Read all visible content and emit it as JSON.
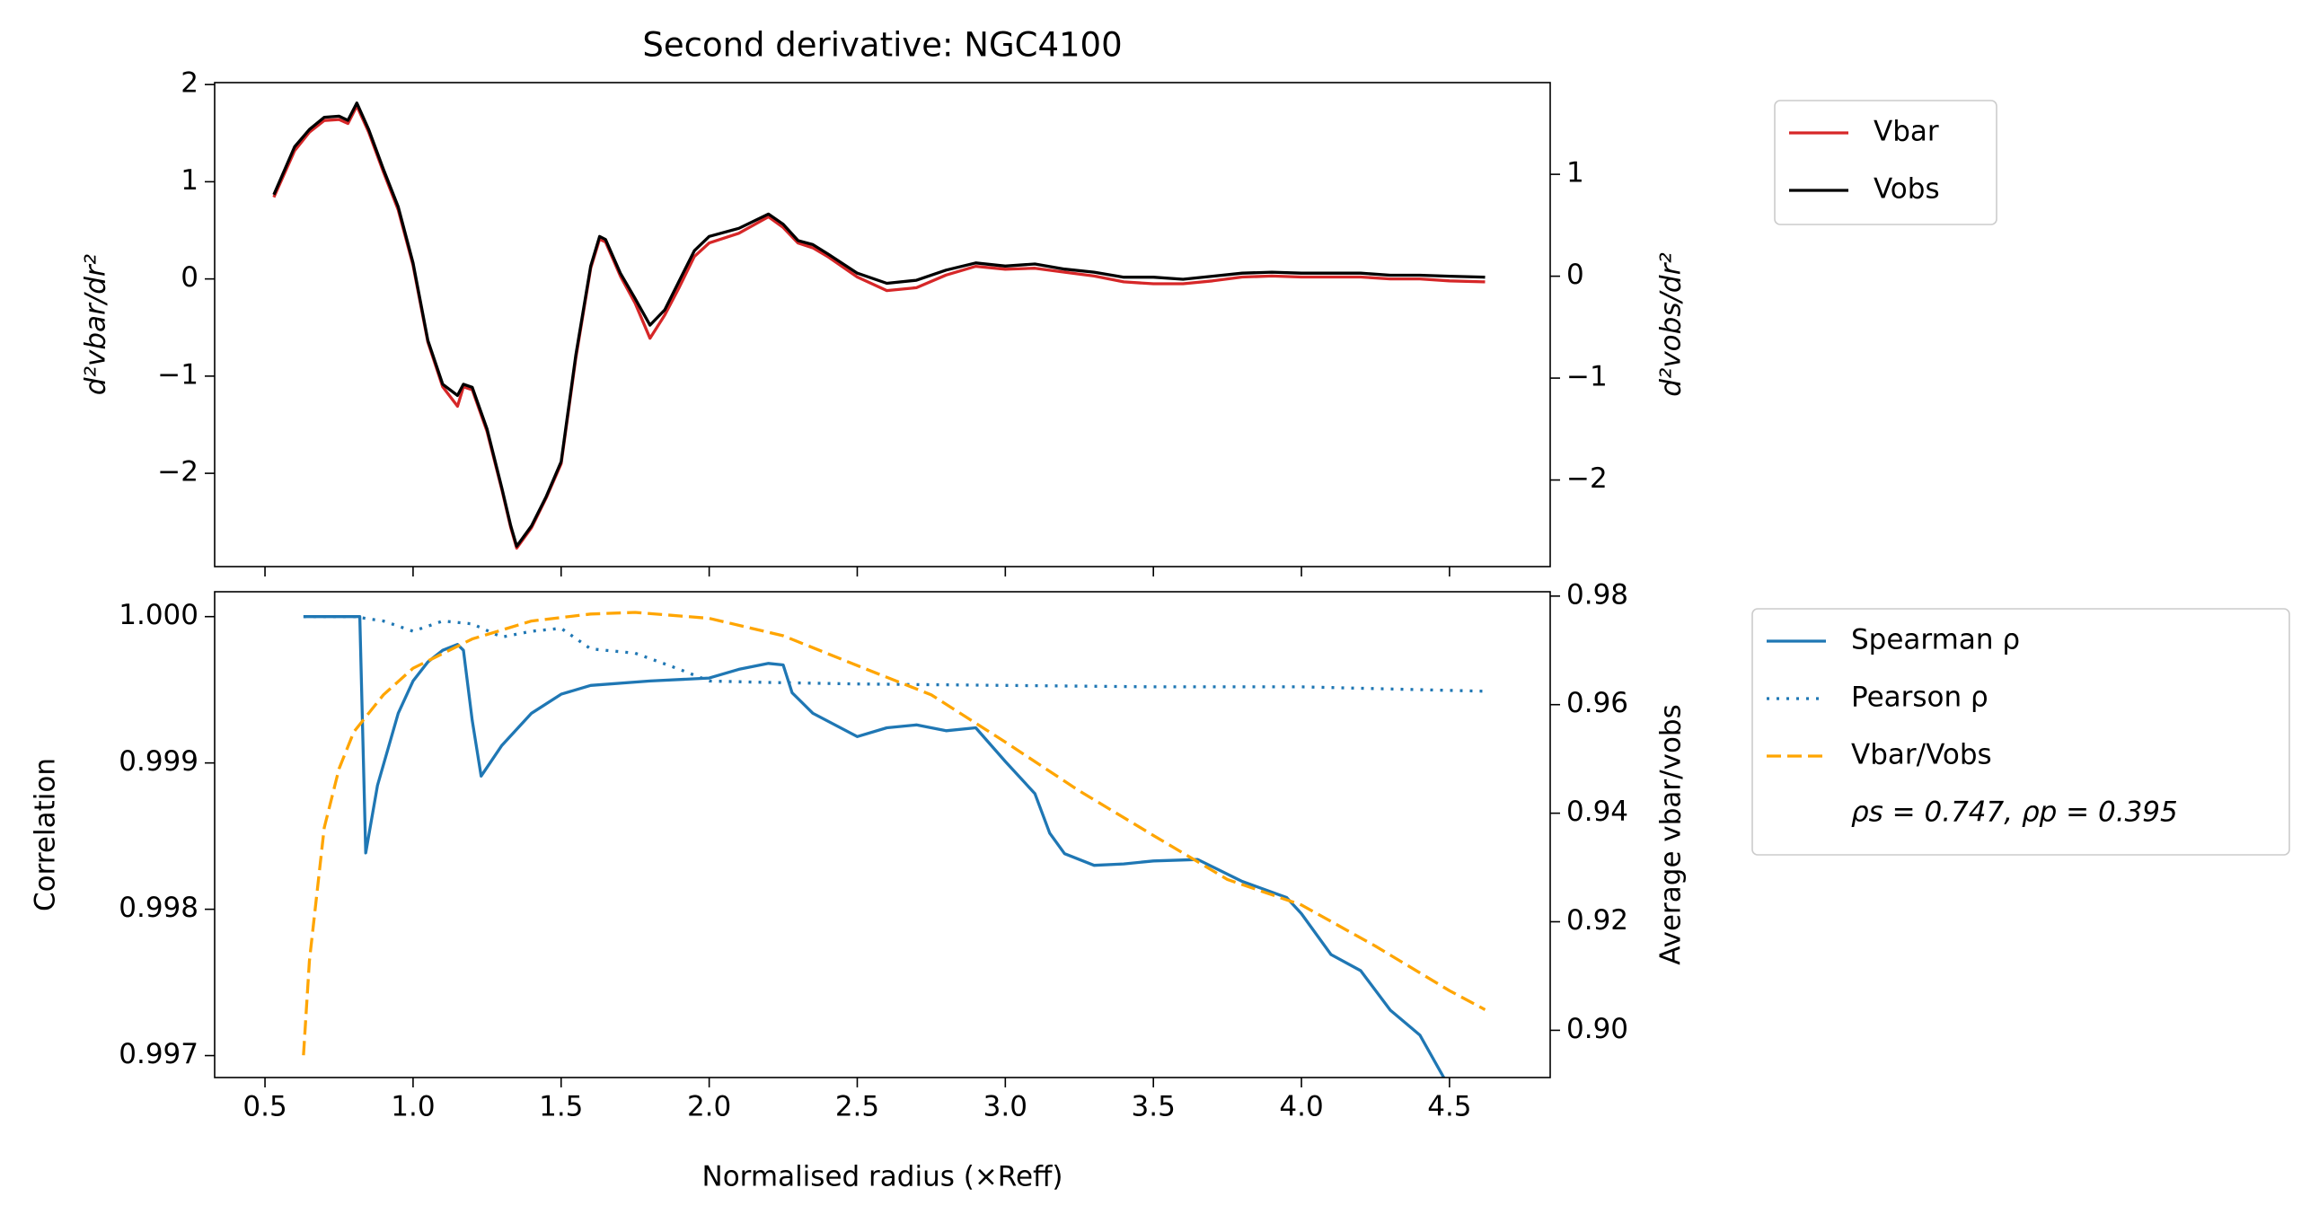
{
  "chart_data": [
    {
      "type": "line",
      "title": "Second derivative: NGC4100",
      "ylabel": "d²vbar/dr²",
      "y2label": "d²vobs/dr²",
      "ylabel_color": "#d62728",
      "y2label_color": "#000000",
      "xlim": [
        0.33,
        4.84
      ],
      "ylim": [
        -2.96,
        2.02
      ],
      "y2lim": [
        -2.85,
        1.9
      ],
      "yticks": [
        {
          "value": -2,
          "label": "−2"
        },
        {
          "value": -1,
          "label": "−1"
        },
        0,
        1,
        2
      ],
      "y2ticks": [
        {
          "value": -2,
          "label": "−2"
        },
        {
          "value": -1,
          "label": "−1"
        },
        0,
        1
      ],
      "legend": "outside upper right",
      "series": [
        {
          "name": "Vbar",
          "color": "#d62728",
          "linestyle": "solid",
          "x": [
            0.53,
            0.6,
            0.65,
            0.7,
            0.75,
            0.78,
            0.81,
            0.85,
            0.9,
            0.95,
            1.0,
            1.05,
            1.1,
            1.15,
            1.17,
            1.2,
            1.25,
            1.3,
            1.33,
            1.35,
            1.4,
            1.45,
            1.5,
            1.55,
            1.6,
            1.63,
            1.65,
            1.7,
            1.75,
            1.8,
            1.85,
            1.9,
            1.95,
            2.0,
            2.1,
            2.2,
            2.25,
            2.3,
            2.35,
            2.4,
            2.5,
            2.6,
            2.7,
            2.8,
            2.9,
            3.0,
            3.1,
            3.2,
            3.3,
            3.4,
            3.5,
            3.6,
            3.7,
            3.8,
            3.9,
            4.0,
            4.1,
            4.2,
            4.3,
            4.4,
            4.5,
            4.62
          ],
          "values": [
            0.84,
            1.32,
            1.51,
            1.63,
            1.64,
            1.6,
            1.78,
            1.51,
            1.1,
            0.71,
            0.14,
            -0.65,
            -1.11,
            -1.31,
            -1.11,
            -1.14,
            -1.57,
            -2.17,
            -2.56,
            -2.77,
            -2.56,
            -2.25,
            -1.9,
            -0.81,
            0.11,
            0.41,
            0.38,
            0.03,
            -0.25,
            -0.61,
            -0.37,
            -0.08,
            0.23,
            0.37,
            0.47,
            0.64,
            0.53,
            0.37,
            0.32,
            0.23,
            0.02,
            -0.12,
            -0.09,
            0.04,
            0.13,
            0.1,
            0.11,
            0.07,
            0.03,
            -0.03,
            -0.05,
            -0.05,
            -0.02,
            0.02,
            0.03,
            0.02,
            0.02,
            0.02,
            0.0,
            0.0,
            -0.02,
            -0.03
          ]
        },
        {
          "name": "Vobs",
          "color": "#000000",
          "linestyle": "solid",
          "axis": "y2",
          "x": [
            0.53,
            0.6,
            0.65,
            0.7,
            0.75,
            0.78,
            0.81,
            0.85,
            0.9,
            0.95,
            1.0,
            1.05,
            1.1,
            1.15,
            1.17,
            1.2,
            1.25,
            1.3,
            1.33,
            1.35,
            1.4,
            1.45,
            1.5,
            1.55,
            1.6,
            1.63,
            1.65,
            1.7,
            1.75,
            1.8,
            1.85,
            1.9,
            1.95,
            2.0,
            2.1,
            2.2,
            2.25,
            2.3,
            2.35,
            2.4,
            2.5,
            2.6,
            2.7,
            2.8,
            2.9,
            3.0,
            3.1,
            3.2,
            3.3,
            3.4,
            3.5,
            3.6,
            3.7,
            3.8,
            3.9,
            4.0,
            4.1,
            4.2,
            4.3,
            4.4,
            4.5,
            4.62
          ],
          "values": [
            0.8,
            1.27,
            1.44,
            1.56,
            1.57,
            1.53,
            1.7,
            1.44,
            1.05,
            0.68,
            0.13,
            -0.63,
            -1.06,
            -1.17,
            -1.06,
            -1.09,
            -1.5,
            -2.08,
            -2.45,
            -2.65,
            -2.45,
            -2.16,
            -1.82,
            -0.77,
            0.1,
            0.39,
            0.36,
            0.03,
            -0.22,
            -0.48,
            -0.33,
            -0.04,
            0.25,
            0.39,
            0.47,
            0.61,
            0.51,
            0.35,
            0.31,
            0.22,
            0.03,
            -0.07,
            -0.04,
            0.06,
            0.13,
            0.1,
            0.12,
            0.07,
            0.04,
            -0.01,
            -0.01,
            -0.03,
            0,
            0.03,
            0.04,
            0.03,
            0.03,
            0.03,
            0.01,
            0.01,
            0,
            -0.01
          ]
        }
      ]
    },
    {
      "type": "line",
      "xlabel": "Normalised radius (×Reff)",
      "ylabel": "Correlation",
      "y2label": "Average vbar/vobs",
      "ylabel_color": "#000000",
      "y2label_color": "#000000",
      "yticks_color": "#1f77b4",
      "y2ticks_color": "#ffa500",
      "xlim": [
        0.33,
        4.84
      ],
      "ylim": [
        0.99685,
        1.00017
      ],
      "y2lim": [
        0.8913,
        0.9808
      ],
      "xticks": [
        0.5,
        {
          "value": 1,
          "label": "1.0"
        },
        1.5,
        {
          "value": 2,
          "label": "2.0"
        },
        2.5,
        {
          "value": 3,
          "label": "3.0"
        },
        3.5,
        {
          "value": 4,
          "label": "4.0"
        },
        4.5
      ],
      "yticks": [
        0.997,
        0.998,
        0.999,
        {
          "value": 1,
          "label": "1.000"
        }
      ],
      "y2ticks": [
        {
          "value": 0.9,
          "label": "0.90"
        },
        0.92,
        0.94,
        0.96,
        0.98
      ],
      "legend": "outside upper right",
      "legend_note": "ρs = 0.747, ρp = 0.395",
      "series": [
        {
          "name": "Spearman ρ",
          "color": "#1f77b4",
          "linestyle": "solid",
          "x": [
            0.63,
            0.8,
            0.82,
            0.84,
            0.88,
            0.95,
            1.0,
            1.05,
            1.1,
            1.15,
            1.17,
            1.2,
            1.23,
            1.3,
            1.4,
            1.5,
            1.6,
            1.8,
            2.0,
            2.1,
            2.2,
            2.25,
            2.28,
            2.35,
            2.5,
            2.6,
            2.7,
            2.8,
            2.9,
            3.0,
            3.1,
            3.15,
            3.2,
            3.3,
            3.4,
            3.5,
            3.65,
            3.8,
            3.95,
            4.0,
            4.1,
            4.2,
            4.3,
            4.4,
            4.5,
            4.62
          ],
          "values": [
            1.0,
            1.0,
            1.0,
            0.998385,
            0.998846,
            0.99934,
            0.99956,
            0.99969,
            0.99977,
            0.99981,
            0.99977,
            0.99929,
            0.99891,
            0.99912,
            0.99934,
            0.99947,
            0.99953,
            0.99956,
            0.99958,
            0.99964,
            0.99968,
            0.99967,
            0.99948,
            0.99934,
            0.99918,
            0.99924,
            0.99926,
            0.99922,
            0.99924,
            0.99901,
            0.99879,
            0.99852,
            0.99838,
            0.9983,
            0.99831,
            0.99833,
            0.99834,
            0.99819,
            0.99808,
            0.99797,
            0.99769,
            0.99758,
            0.99731,
            0.99714,
            0.99678,
            0.99671
          ]
        },
        {
          "name": "Pearson ρ",
          "color": "#1f77b4",
          "linestyle": "dotted",
          "x": [
            0.63,
            0.8,
            0.9,
            1.0,
            1.1,
            1.2,
            1.3,
            1.4,
            1.5,
            1.6,
            1.75,
            1.9,
            2.0,
            2.2,
            2.5,
            3.0,
            3.5,
            4.0,
            4.62
          ],
          "values": [
            1.0,
            1.0,
            0.99997,
            0.9999,
            0.99997,
            0.99995,
            0.99986,
            0.9999,
            0.99992,
            0.99978,
            0.99975,
            0.99964,
            0.99956,
            0.99955,
            0.99954,
            0.99953,
            0.99952,
            0.99952,
            0.99949
          ]
        },
        {
          "name": "Vbar/Vobs",
          "color": "#ffa500",
          "linestyle": "dashed",
          "axis": "y2",
          "x": [
            0.63,
            0.65,
            0.7,
            0.75,
            0.8,
            0.9,
            1.0,
            1.2,
            1.4,
            1.6,
            1.75,
            2.0,
            2.25,
            2.5,
            2.75,
            3.0,
            3.25,
            3.5,
            3.75,
            4.0,
            4.25,
            4.5,
            4.62
          ],
          "values": [
            0.8954,
            0.9128,
            0.9373,
            0.9482,
            0.955,
            0.9618,
            0.9667,
            0.9721,
            0.9754,
            0.9767,
            0.977,
            0.9759,
            0.9727,
            0.9672,
            0.9618,
            0.9531,
            0.9441,
            0.9359,
            0.9278,
            0.9231,
            0.9155,
            0.9073,
            0.9038
          ]
        }
      ]
    }
  ]
}
